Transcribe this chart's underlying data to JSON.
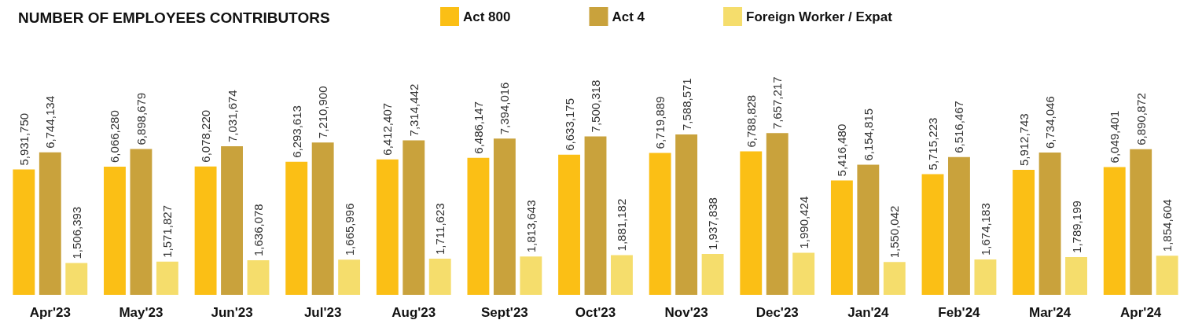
{
  "chart_data": {
    "type": "bar",
    "title": "NUMBER OF EMPLOYEES CONTRIBUTORS",
    "categories": [
      "Apr'23",
      "May'23",
      "Jun'23",
      "Jul'23",
      "Aug'23",
      "Sept'23",
      "Oct'23",
      "Nov'23",
      "Dec'23",
      "Jan'24",
      "Feb'24",
      "Mar'24",
      "Apr'24"
    ],
    "series": [
      {
        "name": "Act 800",
        "color": "#fbbf15",
        "values": [
          5931750,
          6066280,
          6078220,
          6293613,
          6412407,
          6486147,
          6633175,
          6719889,
          6788828,
          5416480,
          5715223,
          5912743,
          6049401
        ],
        "value_labels": [
          "5,931,750",
          "6,066,280",
          "6,078,220",
          "6,293,613",
          "6,412,407",
          "6,486,147",
          "6,633,175",
          "6,719,889",
          "6,788,828",
          "5,416,480",
          "5,715,223",
          "5,912,743",
          "6,049,401"
        ]
      },
      {
        "name": "Act 4",
        "color": "#c9a23c",
        "values": [
          6744134,
          6898679,
          7031674,
          7210900,
          7314442,
          7394016,
          7500318,
          7588571,
          7657217,
          6154815,
          6516467,
          6734046,
          6890872
        ],
        "value_labels": [
          "6,744,134",
          "6,898,679",
          "7,031,674",
          "7,210,900",
          "7,314,442",
          "7,394,016",
          "7,500,318",
          "7,588,571",
          "7,657,217",
          "6,154,815",
          "6,516,467",
          "6,734,046",
          "6,890,872"
        ]
      },
      {
        "name": "Foreign Worker / Expat",
        "color": "#f5dd6c",
        "values": [
          1506393,
          1571827,
          1636078,
          1665996,
          1711623,
          1813643,
          1881182,
          1937838,
          1990424,
          1550042,
          1674183,
          1789199,
          1854604
        ],
        "value_labels": [
          "1,506,393",
          "1,571,827",
          "1,636,078",
          "1,665,996",
          "1,711,623",
          "1,813,643",
          "1,881,182",
          "1,937,838",
          "1,990,424",
          "1,550,042",
          "1,674,183",
          "1,789,199",
          "1,854,604"
        ]
      }
    ],
    "legend": "top"
  }
}
